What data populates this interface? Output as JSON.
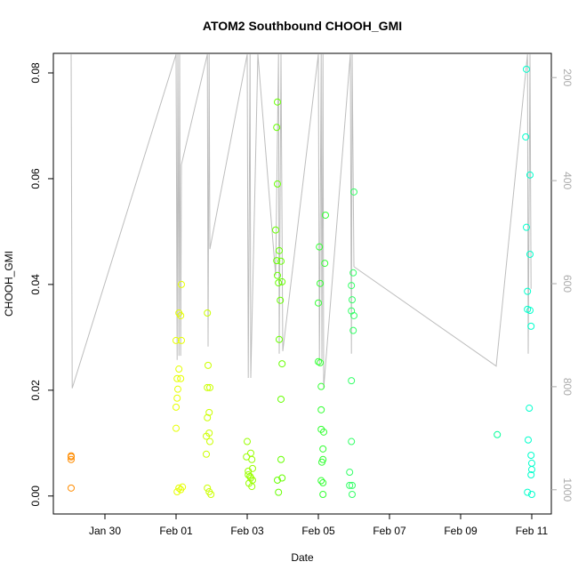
{
  "chart_data": {
    "type": "scatter",
    "title": "ATOM2 Southbound CHOOH_GMI",
    "x_label": "Date",
    "y_label": "CHOOH_GMI",
    "xlim": [
      28.55,
      42.55
    ],
    "xticks": [
      {
        "value": 30,
        "label": "Jan 30"
      },
      {
        "value": 32,
        "label": "Feb 01"
      },
      {
        "value": 34,
        "label": "Feb 03"
      },
      {
        "value": 36,
        "label": "Feb 05"
      },
      {
        "value": 38,
        "label": "Feb 07"
      },
      {
        "value": 40,
        "label": "Feb 09"
      },
      {
        "value": 42,
        "label": "Feb 11"
      }
    ],
    "ylim": [
      -0.0034,
      0.0837
    ],
    "yticks": [
      {
        "value": 0,
        "label": "0.00"
      },
      0.02,
      0.04,
      0.06,
      0.08
    ],
    "y2lim": [
      1047,
      153
    ],
    "y2ticks": [
      200,
      400,
      600,
      800,
      1000
    ],
    "series": [
      {
        "type": "line",
        "axis": "y2",
        "color": "#bdbdbd",
        "x": [
          29.05,
          29.08,
          32.0,
          32.03,
          32.05,
          32.08,
          32.1,
          32.13,
          32.15,
          32.88,
          32.9,
          32.93,
          32.95,
          34.0,
          34.03,
          34.08,
          34.1,
          34.3,
          34.8,
          34.88,
          34.9,
          34.95,
          35.0,
          36.0,
          36.03,
          36.08,
          36.1,
          36.13,
          36.15,
          36.9,
          36.93,
          36.95,
          37.0,
          41.0,
          41.88,
          41.9,
          41.95,
          41.98
        ],
        "values": [
          155,
          803,
          155,
          748,
          155,
          740,
          155,
          740,
          369,
          155,
          722,
          155,
          533,
          155,
          783,
          155,
          783,
          155,
          584,
          155,
          736,
          155,
          731,
          155,
          757,
          155,
          748,
          155,
          803,
          155,
          736,
          155,
          567,
          760,
          155,
          736,
          155,
          610
        ]
      },
      {
        "type": "scatter",
        "color": "#FF8C00",
        "x": [
          29.05,
          29.05,
          29.05,
          29.05
        ],
        "values": [
          0.0074,
          0.0069,
          0.0076,
          0.0015
        ]
      },
      {
        "type": "scatter",
        "color": "#E6FF00",
        "x": [
          32.15,
          32.08,
          32.13,
          32.0,
          32.15,
          32.08,
          32.03,
          32.13,
          32.05,
          32.03,
          32.0,
          32.0,
          32.08,
          32.13,
          32.03,
          32.18
        ],
        "values": [
          0.04,
          0.0346,
          0.0341,
          0.0294,
          0.0294,
          0.024,
          0.0222,
          0.0222,
          0.0202,
          0.0185,
          0.0168,
          0.0128,
          0.0015,
          0.0012,
          0.0008,
          0.0017
        ]
      },
      {
        "type": "scatter",
        "color": "#CCFF00",
        "x": [
          32.88,
          32.9,
          32.88,
          32.95,
          32.93,
          32.88,
          32.93,
          32.85,
          32.95,
          32.85,
          32.88,
          32.93,
          32.98
        ],
        "values": [
          0.0346,
          0.0247,
          0.0205,
          0.0205,
          0.0158,
          0.0148,
          0.0119,
          0.0113,
          0.0103,
          0.0079,
          0.0015,
          0.0008,
          0.0003
        ]
      },
      {
        "type": "scatter",
        "color": "#99FF00",
        "x": [
          34.0,
          33.98,
          34.1,
          34.13,
          34.15,
          34.03,
          34.08,
          34.1,
          34.15,
          34.05,
          34.13,
          34.03
        ],
        "values": [
          0.0103,
          0.0074,
          0.0081,
          0.0069,
          0.0052,
          0.004,
          0.0037,
          0.0034,
          0.003,
          0.0024,
          0.0018,
          0.0047
        ]
      },
      {
        "type": "scatter",
        "color": "#66FF00",
        "x": [
          34.85,
          34.83,
          34.85,
          34.8,
          34.9,
          34.83,
          34.95,
          34.85,
          34.88,
          34.98,
          34.93,
          34.9,
          34.98,
          34.95,
          34.95,
          34.85,
          34.98,
          34.88
        ],
        "values": [
          0.0745,
          0.0697,
          0.059,
          0.0503,
          0.0464,
          0.0445,
          0.0444,
          0.0417,
          0.0403,
          0.0405,
          0.037,
          0.0296,
          0.025,
          0.0183,
          0.0069,
          0.003,
          0.0034,
          0.0007
        ]
      },
      {
        "type": "scatter",
        "color": "#33FF33",
        "x": [
          36.2,
          36.03,
          36.18,
          36.05,
          36.0,
          36.0,
          36.05,
          36.08,
          36.08,
          36.15,
          36.13,
          36.13,
          36.1,
          36.08,
          36.13,
          36.13,
          36.08
        ],
        "values": [
          0.0531,
          0.0471,
          0.044,
          0.0402,
          0.0365,
          0.0254,
          0.0252,
          0.0163,
          0.0126,
          0.0121,
          0.0089,
          0.0069,
          0.0064,
          0.0029,
          0.0025,
          0.0003,
          0.0207
        ]
      },
      {
        "type": "scatter",
        "color": "#33FF66",
        "x": [
          37.0,
          36.98,
          36.93,
          36.95,
          36.93,
          37.0,
          36.98,
          36.93,
          36.93,
          36.88,
          36.95,
          36.88,
          36.95
        ],
        "values": [
          0.0575,
          0.0422,
          0.0398,
          0.0371,
          0.035,
          0.0341,
          0.0313,
          0.0218,
          0.0103,
          0.0045,
          0.002,
          0.002,
          0.0003
        ]
      },
      {
        "type": "scatter",
        "color": "#00FF99",
        "x": [
          41.03
        ],
        "values": [
          0.0116
        ]
      },
      {
        "type": "scatter",
        "color": "#00FFCC",
        "x": [
          41.85,
          41.83,
          41.95,
          41.85,
          41.95,
          41.88,
          41.88,
          41.95,
          41.98,
          41.93,
          41.9,
          41.98,
          42.0,
          42.0,
          41.98,
          41.88,
          42.0
        ],
        "values": [
          0.0807,
          0.0679,
          0.0607,
          0.0508,
          0.0457,
          0.0387,
          0.0353,
          0.0351,
          0.0321,
          0.0166,
          0.0106,
          0.0077,
          0.0062,
          0.005,
          0.004,
          0.0007,
          0.0003
        ]
      }
    ]
  }
}
